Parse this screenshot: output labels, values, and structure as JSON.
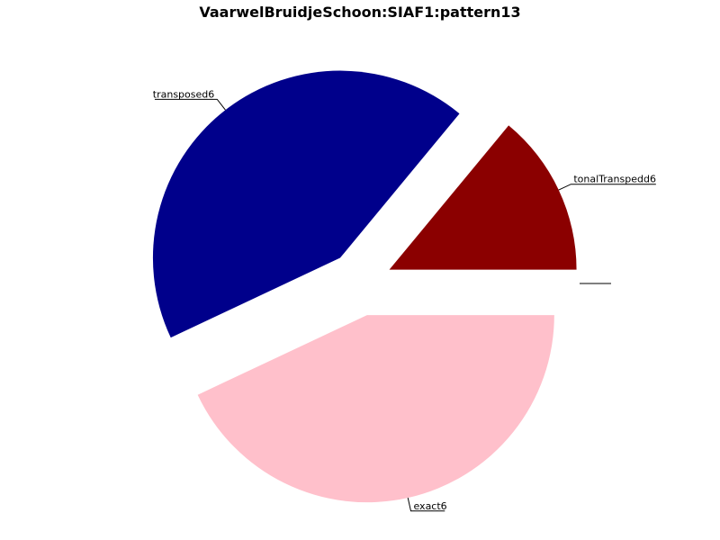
{
  "chart_data": {
    "type": "pie",
    "title": "VaarwelBruidjeSchoon:SIAF1:pattern13",
    "start_angle_deg": 0,
    "direction": "counterclockwise",
    "slices": [
      {
        "label": "tonalTranspedd6",
        "value": 14,
        "color": "#8b0000",
        "exploded": true
      },
      {
        "label": "transposed6",
        "value": 43,
        "color": "#00008b",
        "exploded": true
      },
      {
        "label": "exact6",
        "value": 43,
        "color": "#ffc0cb",
        "exploded": true
      },
      {
        "label": "",
        "value": 0,
        "color": "#ffffff",
        "exploded": true
      }
    ]
  }
}
